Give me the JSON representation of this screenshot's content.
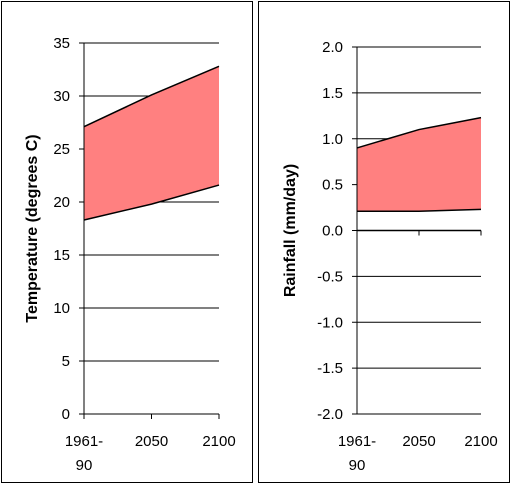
{
  "chart_data": [
    {
      "type": "area",
      "ylabel": "Temperature (degrees C)",
      "xlabel": "",
      "categories": [
        "1961-90",
        "2050",
        "2100"
      ],
      "category_lines": [
        [
          "1961-",
          "90"
        ],
        [
          "2050"
        ],
        [
          "2100"
        ]
      ],
      "ylim": [
        0,
        35
      ],
      "yticks": [
        "0",
        "5",
        "10",
        "15",
        "20",
        "25",
        "30",
        "35"
      ],
      "ytick_values": [
        0,
        5,
        10,
        15,
        20,
        25,
        30,
        35
      ],
      "series": [
        {
          "values": [
            18.3,
            19.8,
            21.6
          ]
        },
        {
          "values": [
            27.1,
            30.1,
            32.8
          ]
        }
      ],
      "band_color": "#ff8080",
      "grid": true
    },
    {
      "type": "area",
      "ylabel": "Rainfall (mm/day)",
      "xlabel": "",
      "categories": [
        "1961-90",
        "2050",
        "2100"
      ],
      "category_lines": [
        [
          "1961-",
          "90"
        ],
        [
          "2050"
        ],
        [
          "2100"
        ]
      ],
      "ylim": [
        -2.0,
        2.0
      ],
      "yticks": [
        "-2.0",
        "-1.5",
        "-1.0",
        "-0.5",
        "0.0",
        "0.5",
        "1.0",
        "1.5",
        "2.0"
      ],
      "ytick_values": [
        -2.0,
        -1.5,
        -1.0,
        -0.5,
        0.0,
        0.5,
        1.0,
        1.5,
        2.0
      ],
      "series": [
        {
          "values": [
            0.21,
            0.21,
            0.23
          ]
        },
        {
          "values": [
            0.9,
            1.1,
            1.23
          ]
        }
      ],
      "band_color": "#ff8080",
      "grid": true
    }
  ]
}
